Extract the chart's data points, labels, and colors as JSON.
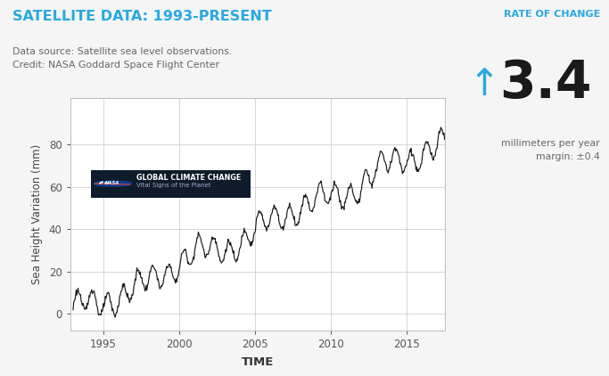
{
  "title": "SATELLITE DATA: 1993-PRESENT",
  "title_color": "#29a8e0",
  "datasource_line1": "Data source: Satellite sea level observations.",
  "datasource_line2": "Credit: NASA Goddard Space Flight Center",
  "rate_of_change_label": "RATE OF CHANGE",
  "rate_value": "3.4",
  "rate_unit": "millimeters per year",
  "rate_margin": "margin: ±0.4",
  "xlabel": "TIME",
  "ylabel": "Sea Height Variation (mm)",
  "yticks": [
    0,
    20,
    40,
    60,
    80
  ],
  "xticks": [
    1995,
    2000,
    2005,
    2010,
    2015
  ],
  "xlim": [
    1992.8,
    2017.5
  ],
  "ylim": [
    -8,
    102
  ],
  "bg_color": "#f5f5f5",
  "plot_bg_color": "#ffffff",
  "line_color": "#1a1a1a",
  "grid_color": "#d0d0d0",
  "rate_text_color": "#29a8e0",
  "text_color": "#666666",
  "nasa_box_dark": "#0d1b2a",
  "nasa_blue": "#0b3d91",
  "nasa_red": "#fc3d21",
  "rate_arrow_color": "#29a8e0",
  "rate_num_color": "#1a1a1a"
}
